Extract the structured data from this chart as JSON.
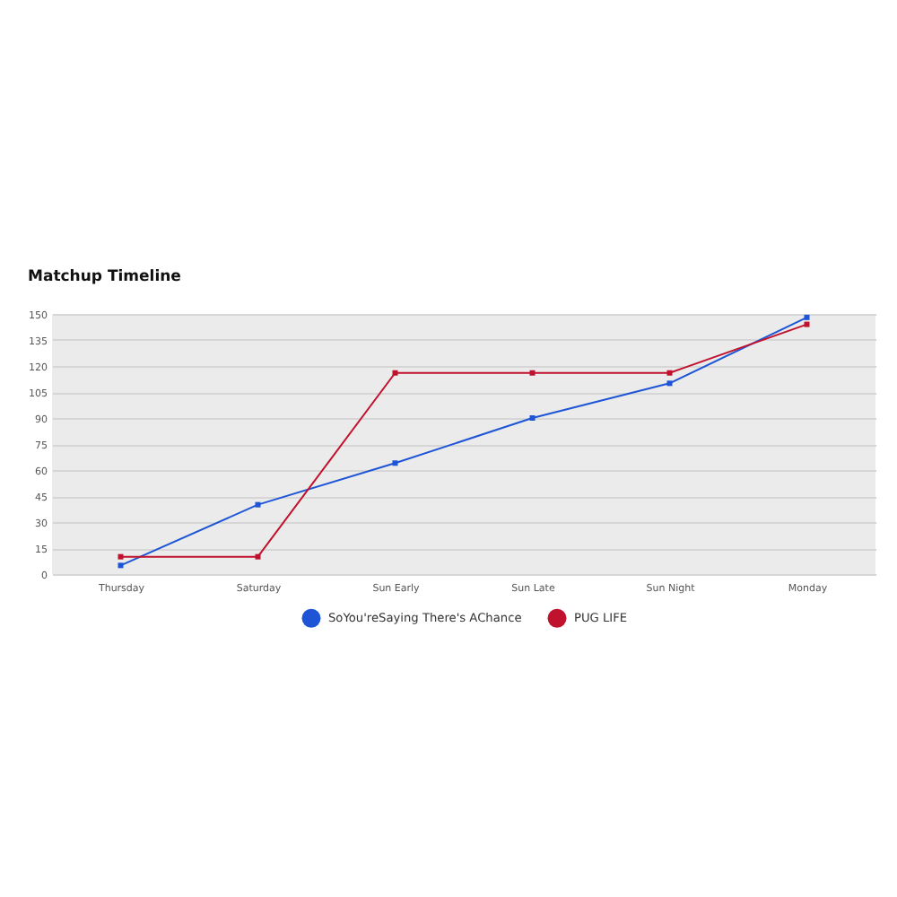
{
  "chart_data": {
    "type": "line",
    "title": "Matchup Timeline",
    "categories": [
      "Thursday",
      "Saturday",
      "Sun Early",
      "Sun Late",
      "Sun Night",
      "Monday"
    ],
    "series": [
      {
        "name": "SoYou'reSaying There's AChance",
        "color": "#1d55d6",
        "values": [
          5,
          40,
          64,
          90,
          110,
          148
        ]
      },
      {
        "name": "PUG LIFE",
        "color": "#c1122d",
        "values": [
          10,
          10,
          116,
          116,
          116,
          144
        ]
      }
    ],
    "ylim": [
      0,
      150
    ],
    "yticks": [
      0,
      15,
      30,
      45,
      60,
      75,
      90,
      105,
      120,
      135,
      150
    ],
    "grid": "y",
    "legend": "bottom",
    "marker": "square",
    "line_style": "solid"
  }
}
